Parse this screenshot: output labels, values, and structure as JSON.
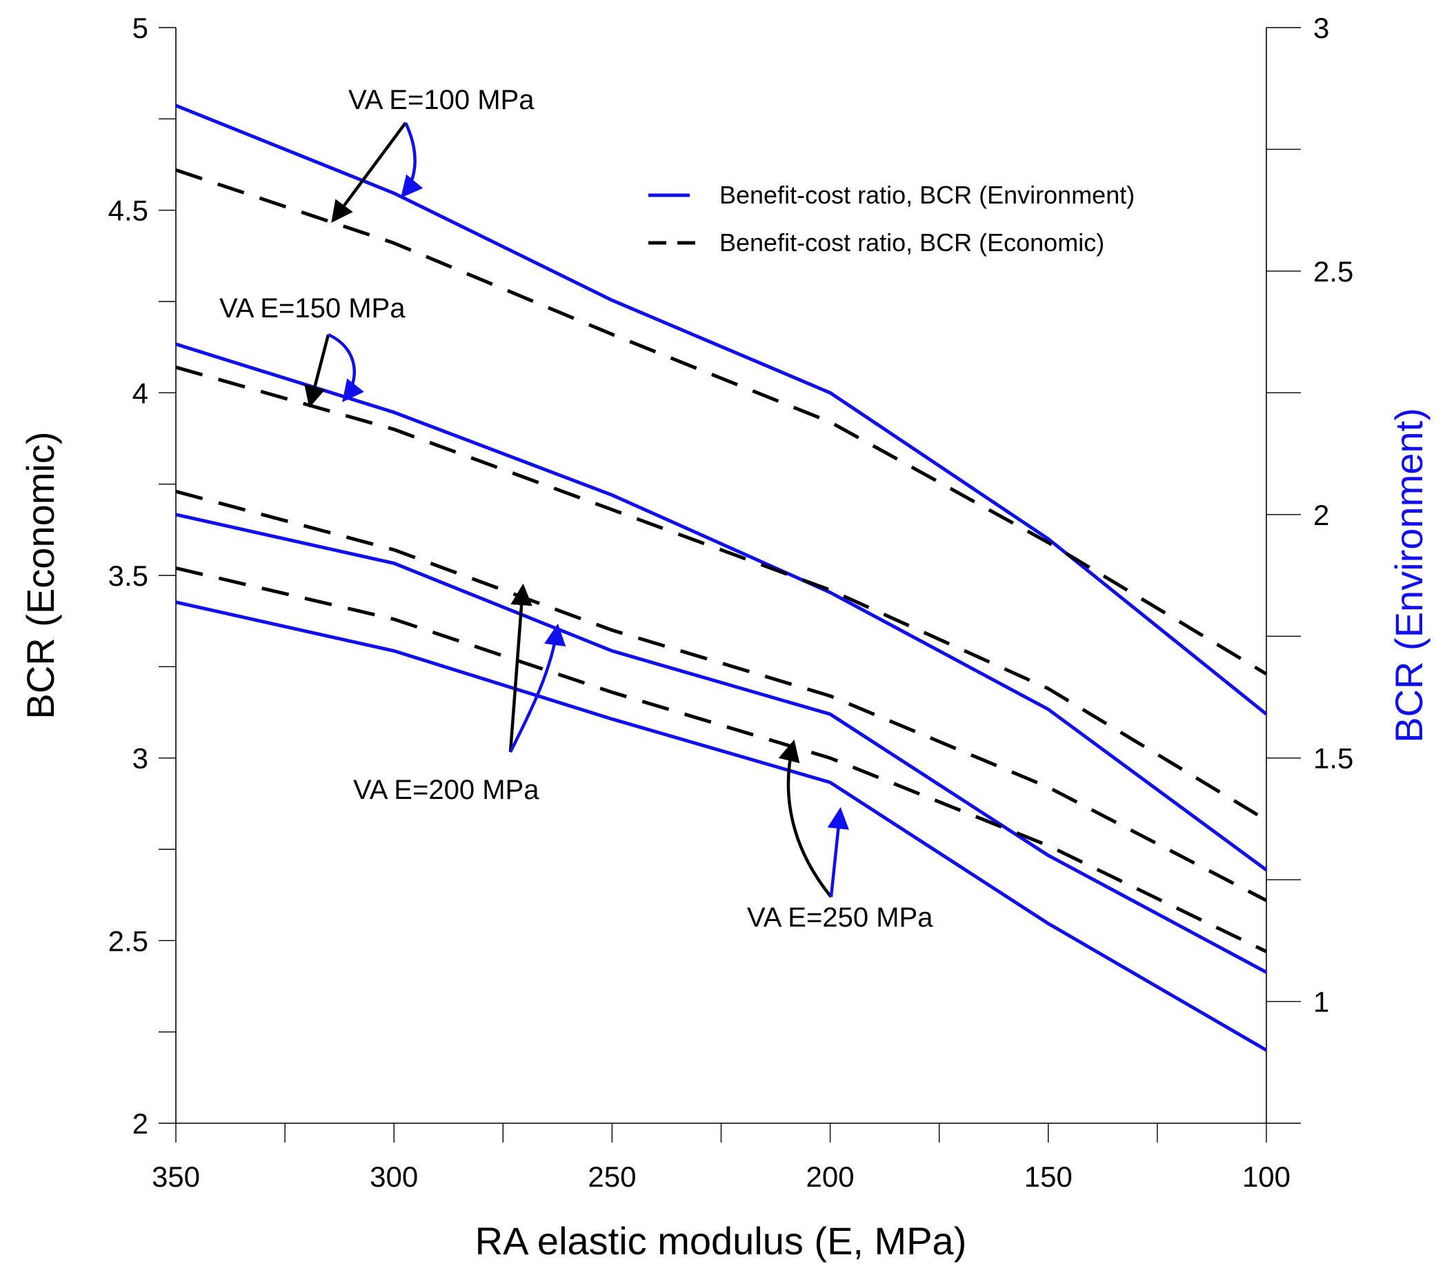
{
  "chart_data": {
    "type": "line",
    "title": "",
    "xlabel": "RA elastic modulus (E, MPa)",
    "ylabel_left": "BCR (Economic)",
    "ylabel_right": "BCR (Environment)",
    "x": [
      350,
      300,
      250,
      200,
      150,
      100
    ],
    "x_ticks": [
      "350",
      "300",
      "250",
      "200",
      "150",
      "100"
    ],
    "y_left_ticks": [
      "2",
      "2.5",
      "3",
      "3.5",
      "4",
      "4.5",
      "5"
    ],
    "y_right_ticks": [
      "1",
      "1.5",
      "2",
      "2.5",
      "3"
    ],
    "ylim_left": [
      2,
      5
    ],
    "ylim_right": [
      0.75,
      3
    ],
    "xlim": [
      350,
      100
    ],
    "x_reversed": true,
    "legend": {
      "position": "top-right",
      "entries": [
        {
          "label": "Benefit-cost ratio, BCR (Environment)",
          "style": "solid",
          "color": "#1010ee"
        },
        {
          "label": "Benefit-cost ratio, BCR (Economic)",
          "style": "dashed",
          "color": "#000000"
        }
      ]
    },
    "series": [
      {
        "name": "Environment VA E=100 MPa",
        "axis": "right",
        "values": [
          2.84,
          2.66,
          2.44,
          2.25,
          1.95,
          1.59
        ]
      },
      {
        "name": "Economic VA E=100 MPa",
        "axis": "left",
        "values": [
          4.61,
          4.41,
          4.16,
          3.92,
          3.59,
          3.23
        ]
      },
      {
        "name": "Environment VA E=150 MPa",
        "axis": "right",
        "values": [
          2.35,
          2.21,
          2.04,
          1.84,
          1.6,
          1.27
        ]
      },
      {
        "name": "Economic VA E=150 MPa",
        "axis": "left",
        "values": [
          4.07,
          3.9,
          3.68,
          3.46,
          3.19,
          2.83
        ]
      },
      {
        "name": "Environment VA E=200 MPa",
        "axis": "right",
        "values": [
          2.0,
          1.9,
          1.72,
          1.59,
          1.3,
          1.06
        ]
      },
      {
        "name": "Economic VA E=200 MPa",
        "axis": "left",
        "values": [
          3.73,
          3.57,
          3.35,
          3.17,
          2.92,
          2.61
        ]
      },
      {
        "name": "Environment VA E=250 MPa",
        "axis": "right",
        "values": [
          1.82,
          1.72,
          1.58,
          1.45,
          1.16,
          0.9
        ]
      },
      {
        "name": "Economic VA E=250 MPa",
        "axis": "left",
        "values": [
          3.52,
          3.38,
          3.18,
          3.0,
          2.76,
          2.47
        ]
      }
    ],
    "annotations": [
      {
        "text": "VA E=100 MPa"
      },
      {
        "text": "VA E=150 MPa"
      },
      {
        "text": "VA E=200 MPa"
      },
      {
        "text": "VA E=250 MPa"
      }
    ]
  },
  "colors": {
    "environment": "#1010ee",
    "economic": "#000000"
  }
}
